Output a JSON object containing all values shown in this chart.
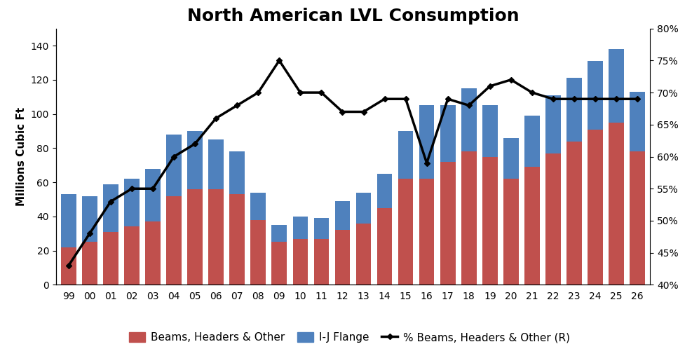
{
  "years": [
    "99",
    "00",
    "01",
    "02",
    "03",
    "04",
    "05",
    "06",
    "07",
    "08",
    "09",
    "10",
    "11",
    "12",
    "13",
    "14",
    "15",
    "16",
    "17",
    "18",
    "19",
    "20",
    "21",
    "22",
    "23",
    "24",
    "25",
    "26"
  ],
  "beams": [
    22,
    25,
    31,
    34,
    37,
    52,
    56,
    56,
    53,
    38,
    25,
    27,
    27,
    32,
    36,
    45,
    62,
    62,
    72,
    78,
    75,
    62,
    69,
    77,
    84,
    91,
    95,
    78
  ],
  "ij_flange": [
    31,
    27,
    28,
    28,
    31,
    36,
    34,
    29,
    25,
    16,
    10,
    13,
    12,
    17,
    18,
    20,
    28,
    43,
    33,
    37,
    30,
    24,
    30,
    34,
    37,
    40,
    43,
    35
  ],
  "pct_beams": [
    43,
    48,
    53,
    55,
    55,
    60,
    62,
    66,
    68,
    70,
    75,
    70,
    70,
    67,
    67,
    69,
    69,
    59,
    69,
    68,
    71,
    72,
    70,
    69,
    69,
    69,
    69,
    69
  ],
  "bar_color_beams": "#c0504d",
  "bar_color_ij": "#4f81bd",
  "line_color": "#000000",
  "title": "North American LVL Consumption",
  "ylabel_left": "Millions Cubic Ft",
  "ylim_left": [
    0,
    150
  ],
  "ylim_right": [
    40,
    80
  ],
  "yticks_left": [
    0,
    20,
    40,
    60,
    80,
    100,
    120,
    140
  ],
  "yticks_right": [
    40,
    45,
    50,
    55,
    60,
    65,
    70,
    75,
    80
  ],
  "legend_labels": [
    "Beams, Headers & Other",
    "I-J Flange",
    "% Beams, Headers & Other (R)"
  ],
  "title_fontsize": 18,
  "label_fontsize": 11,
  "tick_fontsize": 10,
  "bar_width": 0.72
}
